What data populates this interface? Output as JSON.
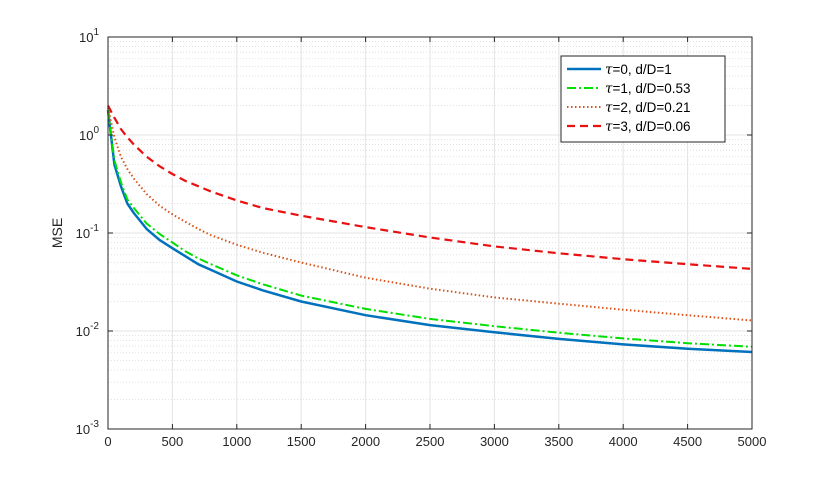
{
  "chart_data": {
    "type": "line",
    "title": "",
    "xlabel": "",
    "ylabel": "MSE",
    "x_scale": "linear",
    "y_scale": "log",
    "xlim": [
      0,
      5000
    ],
    "ylim": [
      0.001,
      10
    ],
    "x_ticks": [
      0,
      500,
      1000,
      1500,
      2000,
      2500,
      3000,
      3500,
      4000,
      4500,
      5000
    ],
    "y_ticks": [
      {
        "value": 0.001,
        "base": "10",
        "exp": "-3"
      },
      {
        "value": 0.01,
        "base": "10",
        "exp": "-2"
      },
      {
        "value": 0.1,
        "base": "10",
        "exp": "-1"
      },
      {
        "value": 1,
        "base": "10",
        "exp": "0"
      },
      {
        "value": 10,
        "base": "10",
        "exp": "1"
      }
    ],
    "grid": true,
    "minor_grid": true,
    "legend_position": "top-right",
    "x": [
      0,
      50,
      100,
      150,
      200,
      300,
      400,
      500,
      600,
      700,
      800,
      1000,
      1200,
      1500,
      2000,
      2500,
      3000,
      3500,
      4000,
      4500,
      5000
    ],
    "series": [
      {
        "name_symbol": "τ",
        "name_rest": "=0, d/D=1",
        "color": "#0072BD",
        "dash": "",
        "width": 2.5,
        "values": [
          1.8,
          0.5,
          0.3,
          0.2,
          0.16,
          0.11,
          0.085,
          0.07,
          0.058,
          0.048,
          0.042,
          0.032,
          0.026,
          0.02,
          0.0145,
          0.0115,
          0.0097,
          0.0083,
          0.0073,
          0.0066,
          0.0061
        ]
      },
      {
        "name_symbol": "τ",
        "name_rest": "=1, d/D=0.53",
        "color": "#00E000",
        "dash": "9,3,2,3",
        "width": 2,
        "values": [
          1.8,
          0.55,
          0.33,
          0.22,
          0.18,
          0.125,
          0.098,
          0.08,
          0.065,
          0.055,
          0.048,
          0.037,
          0.03,
          0.023,
          0.0168,
          0.0133,
          0.0112,
          0.0096,
          0.0084,
          0.0075,
          0.0069
        ]
      },
      {
        "name_symbol": "τ",
        "name_rest": "=2, d/D=0.21",
        "color": "#D95319",
        "dash": "1.5,2.5",
        "width": 2,
        "values": [
          1.9,
          0.95,
          0.6,
          0.45,
          0.36,
          0.25,
          0.19,
          0.155,
          0.13,
          0.11,
          0.095,
          0.076,
          0.063,
          0.05,
          0.035,
          0.027,
          0.022,
          0.019,
          0.0165,
          0.0145,
          0.0128
        ]
      },
      {
        "name_symbol": "τ",
        "name_rest": "=3, d/D=0.06",
        "color": "#E81010",
        "dash": "8,5",
        "width": 2.2,
        "values": [
          2.0,
          1.5,
          1.15,
          0.95,
          0.8,
          0.6,
          0.48,
          0.4,
          0.34,
          0.3,
          0.265,
          0.215,
          0.18,
          0.15,
          0.115,
          0.09,
          0.073,
          0.062,
          0.054,
          0.048,
          0.043
        ]
      }
    ]
  }
}
